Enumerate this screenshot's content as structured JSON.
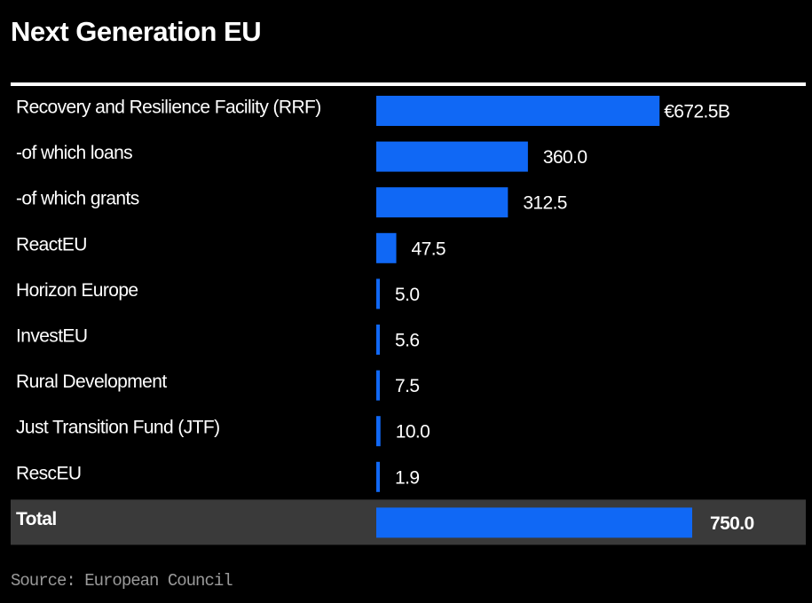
{
  "chart_data": {
    "type": "bar",
    "orientation": "horizontal",
    "title": "Next Generation EU",
    "categories": [
      "Recovery and Resilience Facility (RRF)",
      "-of which loans",
      "-of which grants",
      "ReactEU",
      "Horizon Europe",
      "InvestEU",
      "Rural Development",
      "Just Transition Fund (JTF)",
      "RescEU",
      "Total"
    ],
    "values": [
      672.5,
      360.0,
      312.5,
      47.5,
      5.0,
      5.6,
      7.5,
      10.0,
      1.9,
      750.0
    ],
    "value_labels": [
      "€672.5B",
      "360.0",
      "312.5",
      "47.5",
      "5.0",
      "5.6",
      "7.5",
      "10.0",
      "1.9",
      "750.0"
    ],
    "color": "#1068f5",
    "total_row": true,
    "source": "Source: European Council"
  }
}
